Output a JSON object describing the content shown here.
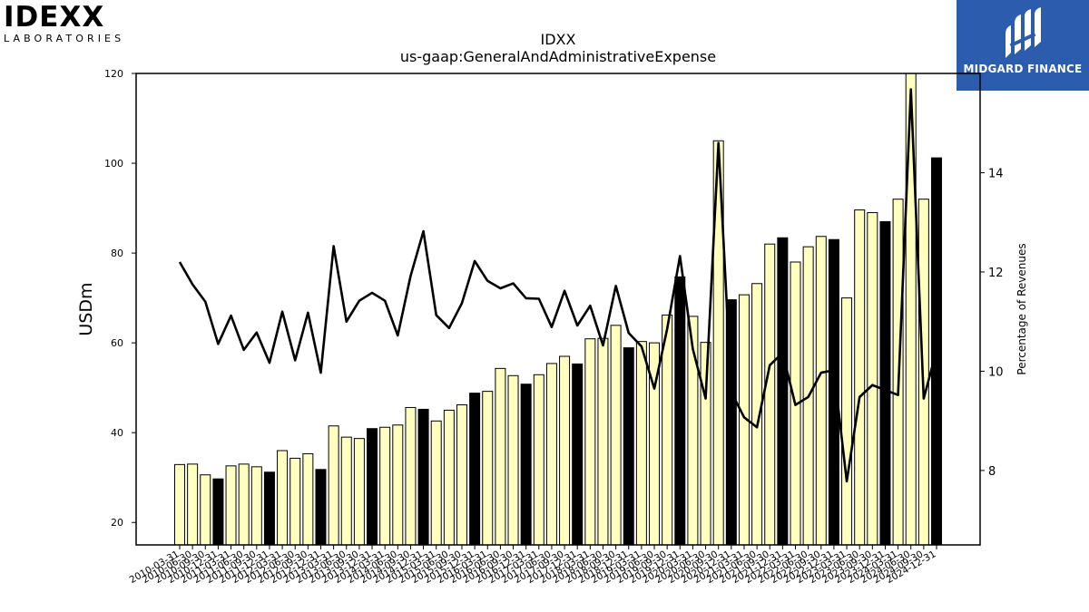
{
  "header": {
    "left_logo_text": "IDEXX",
    "left_logo_subtext": "LABORATORIES",
    "right_logo_text": "MIDGARD FINANCE"
  },
  "chart_data": {
    "type": "bar",
    "title": "IDXX",
    "subtitle": "us-gaap:GeneralAndAdministrativeExpense",
    "ylabel": "USDm",
    "y2label": "Percentage of Revenues",
    "ylim": [
      15,
      120
    ],
    "y2lim": [
      6.5,
      16
    ],
    "yticks": [
      20,
      40,
      60,
      80,
      100,
      120
    ],
    "y2ticks": [
      8,
      10,
      12,
      14
    ],
    "grid": false,
    "x": [
      "2010-03-31",
      "2010-06-30",
      "2010-09-30",
      "2010-12-31",
      "2011-03-31",
      "2011-06-30",
      "2011-09-30",
      "2011-12-31",
      "2012-03-31",
      "2012-06-30",
      "2012-09-30",
      "2012-12-31",
      "2013-03-31",
      "2013-06-30",
      "2013-09-30",
      "2013-12-31",
      "2014-03-31",
      "2014-06-30",
      "2014-09-30",
      "2014-12-31",
      "2015-03-31",
      "2015-06-30",
      "2015-09-30",
      "2015-12-31",
      "2016-03-31",
      "2016-06-30",
      "2016-09-30",
      "2016-12-31",
      "2017-03-31",
      "2017-06-30",
      "2017-09-30",
      "2017-12-31",
      "2018-03-31",
      "2018-06-30",
      "2018-09-30",
      "2018-12-31",
      "2019-03-31",
      "2019-06-30",
      "2019-09-30",
      "2019-12-31",
      "2020-03-31",
      "2020-06-30",
      "2020-09-30",
      "2020-12-31",
      "2021-03-31",
      "2021-06-30",
      "2021-09-30",
      "2021-12-31",
      "2022-03-31",
      "2022-06-30",
      "2022-09-30",
      "2022-12-31",
      "2023-03-31",
      "2023-06-30",
      "2023-09-30",
      "2023-12-31",
      "2024-03-31",
      "2024-06-30",
      "2024-09-30",
      "2024-12-31"
    ],
    "series": [
      {
        "kind": "bar",
        "values": [
          32.9,
          33.0,
          30.6,
          29.7,
          32.6,
          33.0,
          32.4,
          31.2,
          36.0,
          34.3,
          35.3,
          31.8,
          41.5,
          39.0,
          38.7,
          40.9,
          41.2,
          41.7,
          45.6,
          45.2,
          42.6,
          45.0,
          46.2,
          48.8,
          49.2,
          54.3,
          52.7,
          50.8,
          52.9,
          55.4,
          57.0,
          55.3,
          60.9,
          61.0,
          63.9,
          58.9,
          60.3,
          60.0,
          66.2,
          74.7,
          65.9,
          60.1,
          105.0,
          69.6,
          70.7,
          73.2,
          82.0,
          83.4,
          78.0,
          81.4,
          83.7,
          83.0,
          70.0,
          89.6,
          89.0,
          87.0,
          92.0,
          120.0,
          92.0,
          101.2
        ],
        "highlight_color": "#000000",
        "base_color": "#ffffc0",
        "highlighted": [
          3,
          7,
          11,
          15,
          19,
          23,
          27,
          31,
          35,
          39,
          43,
          47,
          51,
          55,
          59
        ]
      },
      {
        "kind": "line",
        "axis": "right",
        "color": "#000000",
        "values": [
          12.2,
          11.75,
          11.4,
          10.55,
          11.12,
          10.43,
          10.78,
          10.17,
          11.2,
          10.22,
          11.18,
          9.97,
          12.52,
          11.0,
          11.42,
          11.58,
          11.42,
          10.72,
          11.92,
          12.82,
          11.13,
          10.87,
          11.37,
          12.22,
          11.82,
          11.67,
          11.77,
          11.47,
          11.46,
          10.89,
          11.62,
          10.92,
          11.32,
          10.52,
          11.72,
          10.77,
          10.5,
          9.65,
          10.85,
          12.32,
          10.45,
          9.45,
          14.6,
          9.58,
          9.07,
          8.87,
          10.12,
          10.37,
          9.32,
          9.48,
          9.97,
          10.02,
          7.78,
          9.48,
          9.72,
          9.62,
          9.52,
          15.68,
          9.45,
          10.42
        ]
      }
    ]
  }
}
